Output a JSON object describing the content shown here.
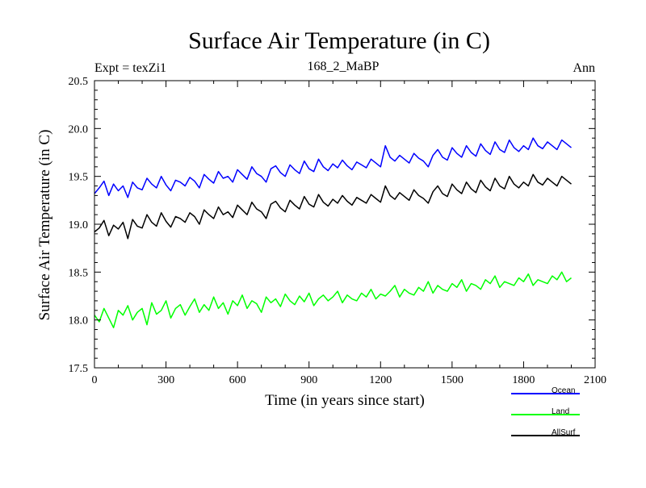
{
  "chart_data": {
    "type": "line",
    "title": "Surface Air Temperature (in C)",
    "subtitle_left": "Expt = texZi1",
    "subtitle_center": "168_2_MaBP",
    "subtitle_right": "Ann",
    "xlabel": "Time (in years since start)",
    "ylabel": "Surface Air Temperature (in C)",
    "xlim": [
      0,
      2100
    ],
    "ylim": [
      17.5,
      20.5
    ],
    "x_ticks": [
      0,
      300,
      600,
      900,
      1200,
      1500,
      1800,
      2100
    ],
    "x_tick_labels": [
      "0",
      "300",
      "600",
      "900",
      "1200",
      "1500",
      "1800",
      "2100"
    ],
    "y_ticks": [
      17.5,
      18.0,
      18.5,
      19.0,
      19.5,
      20.0,
      20.5
    ],
    "y_tick_labels": [
      "17.5",
      "18.0",
      "18.5",
      "19.0",
      "19.5",
      "20.0",
      "20.5"
    ],
    "x_start": 0,
    "x_step": 20,
    "series": [
      {
        "name": "Ocean",
        "color": "#0000ff",
        "values": [
          19.32,
          19.38,
          19.45,
          19.3,
          19.42,
          19.35,
          19.4,
          19.28,
          19.44,
          19.38,
          19.36,
          19.48,
          19.42,
          19.38,
          19.5,
          19.41,
          19.35,
          19.46,
          19.44,
          19.4,
          19.49,
          19.45,
          19.38,
          19.52,
          19.47,
          19.43,
          19.55,
          19.48,
          19.5,
          19.44,
          19.57,
          19.52,
          19.47,
          19.6,
          19.53,
          19.5,
          19.44,
          19.58,
          19.61,
          19.54,
          19.5,
          19.62,
          19.57,
          19.53,
          19.66,
          19.58,
          19.55,
          19.68,
          19.6,
          19.56,
          19.63,
          19.59,
          19.67,
          19.61,
          19.57,
          19.65,
          19.62,
          19.59,
          19.68,
          19.64,
          19.6,
          19.82,
          19.7,
          19.66,
          19.72,
          19.68,
          19.64,
          19.74,
          19.69,
          19.66,
          19.6,
          19.72,
          19.78,
          19.7,
          19.67,
          19.8,
          19.74,
          19.7,
          19.82,
          19.75,
          19.71,
          19.84,
          19.77,
          19.73,
          19.86,
          19.78,
          19.75,
          19.88,
          19.8,
          19.76,
          19.82,
          19.78,
          19.9,
          19.82,
          19.79,
          19.86,
          19.82,
          19.78,
          19.88,
          19.84,
          19.8
        ]
      },
      {
        "name": "Land",
        "color": "#00ff00",
        "values": [
          18.05,
          17.98,
          18.12,
          18.02,
          17.92,
          18.1,
          18.05,
          18.15,
          18.0,
          18.08,
          18.12,
          17.95,
          18.18,
          18.06,
          18.1,
          18.2,
          18.02,
          18.12,
          18.16,
          18.05,
          18.14,
          18.22,
          18.08,
          18.16,
          18.1,
          18.24,
          18.12,
          18.18,
          18.06,
          18.2,
          18.15,
          18.26,
          18.12,
          18.2,
          18.17,
          18.08,
          18.24,
          18.18,
          18.22,
          18.14,
          18.27,
          18.2,
          18.16,
          18.25,
          18.19,
          18.28,
          18.15,
          18.22,
          18.26,
          18.2,
          18.24,
          18.3,
          18.18,
          18.26,
          18.22,
          18.2,
          18.28,
          18.24,
          18.32,
          18.22,
          18.27,
          18.25,
          18.3,
          18.36,
          18.24,
          18.32,
          18.28,
          18.26,
          18.34,
          18.3,
          18.4,
          18.28,
          18.36,
          18.32,
          18.3,
          18.38,
          18.34,
          18.42,
          18.3,
          18.38,
          18.36,
          18.32,
          18.42,
          18.38,
          18.46,
          18.34,
          18.4,
          18.38,
          18.36,
          18.44,
          18.4,
          18.48,
          18.36,
          18.42,
          18.4,
          18.38,
          18.46,
          18.42,
          18.5,
          18.4,
          18.44
        ]
      },
      {
        "name": "AllSurf",
        "color": "#000000",
        "values": [
          18.92,
          18.96,
          19.04,
          18.88,
          18.99,
          18.95,
          19.02,
          18.85,
          19.05,
          18.98,
          18.96,
          19.1,
          19.02,
          18.98,
          19.12,
          19.03,
          18.97,
          19.08,
          19.06,
          19.02,
          19.12,
          19.08,
          19.0,
          19.15,
          19.1,
          19.06,
          19.18,
          19.1,
          19.13,
          19.07,
          19.2,
          19.15,
          19.1,
          19.23,
          19.16,
          19.13,
          19.06,
          19.21,
          19.24,
          19.17,
          19.13,
          19.25,
          19.2,
          19.16,
          19.29,
          19.21,
          19.18,
          19.31,
          19.23,
          19.19,
          19.26,
          19.22,
          19.3,
          19.24,
          19.2,
          19.28,
          19.25,
          19.22,
          19.31,
          19.27,
          19.23,
          19.4,
          19.3,
          19.26,
          19.33,
          19.29,
          19.25,
          19.36,
          19.3,
          19.27,
          19.22,
          19.34,
          19.4,
          19.32,
          19.29,
          19.42,
          19.36,
          19.32,
          19.44,
          19.37,
          19.33,
          19.46,
          19.39,
          19.35,
          19.48,
          19.4,
          19.37,
          19.5,
          19.42,
          19.38,
          19.44,
          19.4,
          19.52,
          19.44,
          19.41,
          19.48,
          19.44,
          19.4,
          19.5,
          19.46,
          19.42
        ]
      }
    ],
    "legend_position": "bottom-right"
  }
}
